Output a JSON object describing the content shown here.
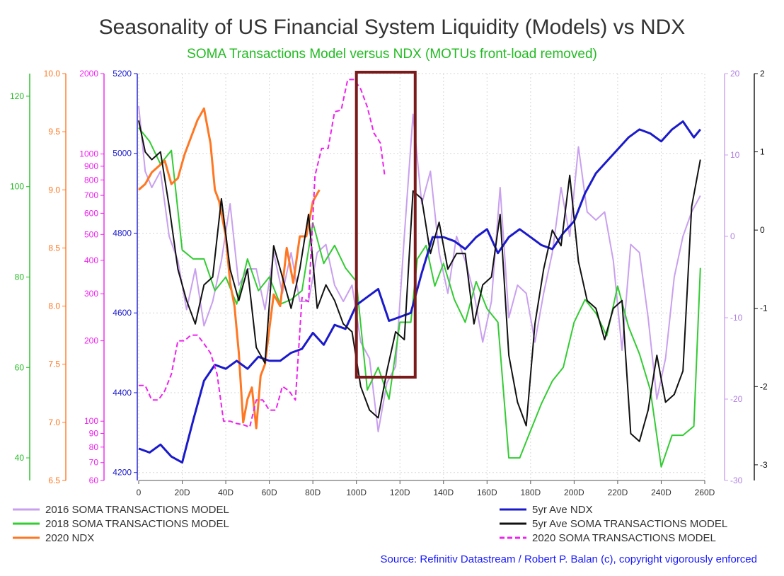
{
  "chart_data": {
    "type": "line",
    "title": "Seasonality of US Financial System Liquidity (Models) vs NDX",
    "subtitle": "SOMA Transactions Model versus NDX (MOTUs front-load removed)",
    "x_ticks": [
      "0",
      "20D",
      "40D",
      "60D",
      "80D",
      "100D",
      "120D",
      "140D",
      "160D",
      "180D",
      "200D",
      "220D",
      "240D",
      "260D"
    ],
    "xlim": [
      0,
      260
    ],
    "grid": true,
    "axes": {
      "left_green": {
        "ticks": [
          "120",
          "100",
          "80",
          "60",
          "40"
        ],
        "ylim": [
          35,
          125
        ]
      },
      "left_orange": {
        "ticks": [
          "10.0",
          "9.5",
          "9.0",
          "8.5",
          "8.0",
          "7.5",
          "7.0",
          "6.5"
        ],
        "ylim": [
          6.5,
          10.0
        ]
      },
      "left_magenta": {
        "ticks": [
          "2000",
          "1000",
          "900",
          "800",
          "700",
          "600",
          "500",
          "400",
          "300",
          "200",
          "100",
          "90",
          "80",
          "70",
          "60"
        ],
        "ylim": [
          60,
          2000
        ],
        "scale": "log"
      },
      "left_blue": {
        "ticks": [
          "5200",
          "5000",
          "4800",
          "4600",
          "4400",
          "4200"
        ],
        "ylim": [
          4180,
          5200
        ]
      },
      "right_lilac": {
        "ticks": [
          "20",
          "10",
          "0",
          "-10",
          "-20",
          "-30"
        ],
        "ylim": [
          -30,
          20
        ]
      },
      "right_black": {
        "ticks": [
          "2",
          "1",
          "0",
          "-1",
          "-2",
          "-3"
        ],
        "ylim": [
          -3.2,
          2
        ]
      }
    },
    "series": [
      {
        "name": "2016 SOMA TRANSACTIONS MODEL",
        "color": "#c9a0ee",
        "axis": "right_lilac",
        "x": [
          0,
          3,
          6,
          10,
          14,
          18,
          22,
          26,
          30,
          34,
          38,
          42,
          46,
          50,
          54,
          58,
          62,
          66,
          70,
          74,
          78,
          82,
          86,
          90,
          94,
          98,
          102,
          106,
          110,
          114,
          118,
          122,
          126,
          130,
          134,
          138,
          142,
          146,
          150,
          154,
          158,
          162,
          166,
          170,
          174,
          178,
          182,
          186,
          190,
          194,
          198,
          202,
          206,
          210,
          214,
          218,
          222,
          226,
          230,
          234,
          238,
          242,
          246,
          250,
          254,
          258
        ],
        "y": [
          16,
          8,
          6,
          8,
          0,
          -3,
          -9,
          -4,
          -11,
          -8,
          -3,
          4,
          -6,
          -4,
          -4,
          -9,
          -2,
          -7,
          -2,
          -8,
          -8,
          -2,
          -1,
          -6,
          -8,
          -6,
          -13,
          -15,
          -24,
          -18,
          -16,
          0,
          15,
          4,
          8,
          -2,
          -7,
          0,
          -3,
          -7,
          -13,
          -8,
          6,
          -10,
          -6,
          -7,
          -13,
          -7,
          -2,
          6,
          0,
          11,
          3,
          2,
          3,
          -3,
          -14,
          -1,
          -2,
          -10,
          -20,
          -15,
          -5,
          0,
          3,
          5
        ]
      },
      {
        "name": "2018 SOMA TRANSACTIONS MODEL",
        "color": "#33cc33",
        "axis": "left_green",
        "x": [
          0,
          5,
          10,
          15,
          20,
          25,
          30,
          35,
          40,
          45,
          50,
          55,
          60,
          65,
          70,
          75,
          80,
          85,
          90,
          95,
          100,
          105,
          110,
          115,
          120,
          125,
          128,
          132,
          136,
          140,
          145,
          150,
          155,
          160,
          165,
          170,
          175,
          180,
          185,
          190,
          195,
          200,
          205,
          210,
          215,
          220,
          225,
          230,
          235,
          240,
          245,
          250,
          255,
          258
        ],
        "y": [
          113,
          110,
          105,
          108,
          86,
          84,
          84,
          77,
          80,
          74,
          84,
          77,
          80,
          74,
          75,
          77,
          92,
          83,
          87,
          82,
          79,
          55,
          60,
          53,
          70,
          70,
          84,
          87,
          78,
          83,
          75,
          70,
          79,
          73,
          70,
          40,
          40,
          46,
          52,
          57,
          60,
          70,
          75,
          72,
          67,
          78,
          69,
          63,
          55,
          38,
          45,
          45,
          47,
          82
        ]
      },
      {
        "name": "2020 NDX",
        "color": "#ff7722",
        "axis": "left_orange",
        "x": [
          0,
          3,
          6,
          9,
          12,
          15,
          18,
          21,
          24,
          27,
          30,
          33,
          35,
          37,
          40,
          42,
          44,
          46,
          48,
          50,
          52,
          54,
          56,
          58,
          60,
          62,
          65,
          68,
          71,
          74,
          77,
          80,
          83
        ],
        "y": [
          9.0,
          9.05,
          9.15,
          9.2,
          9.25,
          9.05,
          9.1,
          9.3,
          9.45,
          9.6,
          9.7,
          9.4,
          9.0,
          8.9,
          8.6,
          8.2,
          8.0,
          7.6,
          7.0,
          7.2,
          7.3,
          6.95,
          7.4,
          7.5,
          7.8,
          8.1,
          8.0,
          8.5,
          8.2,
          8.6,
          8.6,
          8.9,
          9.0
        ]
      },
      {
        "name": "5yr Ave NDX",
        "color": "#1a1acc",
        "axis": "left_blue",
        "x": [
          0,
          5,
          10,
          15,
          20,
          25,
          30,
          35,
          40,
          45,
          50,
          55,
          60,
          65,
          70,
          75,
          80,
          85,
          90,
          95,
          100,
          105,
          110,
          115,
          120,
          125,
          130,
          135,
          140,
          145,
          150,
          155,
          160,
          165,
          170,
          175,
          180,
          185,
          190,
          195,
          200,
          205,
          210,
          215,
          220,
          225,
          230,
          235,
          240,
          245,
          250,
          255,
          258
        ],
        "y": [
          4260,
          4250,
          4270,
          4240,
          4225,
          4330,
          4430,
          4470,
          4460,
          4480,
          4460,
          4490,
          4480,
          4480,
          4500,
          4510,
          4550,
          4520,
          4570,
          4560,
          4620,
          4640,
          4660,
          4580,
          4590,
          4600,
          4700,
          4790,
          4790,
          4780,
          4760,
          4790,
          4810,
          4750,
          4790,
          4810,
          4790,
          4770,
          4760,
          4800,
          4830,
          4900,
          4950,
          4980,
          5010,
          5040,
          5060,
          5050,
          5030,
          5060,
          5080,
          5040,
          5060
        ]
      },
      {
        "name": "5yr Ave SOMA TRANSACTIONS MODEL",
        "color": "#111111",
        "axis": "right_black",
        "x": [
          0,
          3,
          6,
          10,
          14,
          18,
          22,
          26,
          30,
          34,
          38,
          42,
          46,
          50,
          54,
          58,
          62,
          66,
          70,
          74,
          78,
          82,
          86,
          90,
          94,
          98,
          102,
          106,
          110,
          114,
          118,
          122,
          126,
          130,
          134,
          138,
          142,
          146,
          150,
          154,
          158,
          162,
          166,
          170,
          174,
          178,
          182,
          186,
          190,
          194,
          198,
          202,
          206,
          210,
          214,
          218,
          222,
          226,
          230,
          234,
          238,
          242,
          246,
          250,
          254,
          258
        ],
        "y": [
          1.4,
          1.0,
          0.9,
          1.0,
          0.3,
          -0.5,
          -0.9,
          -1.2,
          -0.7,
          -0.6,
          0.4,
          -0.5,
          -0.9,
          -0.5,
          -1.5,
          -1.7,
          -0.2,
          -0.6,
          -1.0,
          -0.5,
          0.2,
          -1.0,
          -0.7,
          -0.9,
          -1.2,
          -1.3,
          -2.0,
          -2.3,
          -2.4,
          -1.8,
          -1.3,
          -1.4,
          0.5,
          0.4,
          -0.3,
          0.1,
          -0.5,
          -0.3,
          -0.3,
          -1.2,
          -0.7,
          -0.6,
          0.2,
          -1.6,
          -2.2,
          -2.5,
          -1.2,
          -0.5,
          0.0,
          -0.2,
          0.7,
          -0.4,
          -0.9,
          -1.0,
          -1.4,
          -1.0,
          -0.9,
          -2.6,
          -2.7,
          -2.3,
          -1.6,
          -2.2,
          -2.1,
          -1.8,
          0.3,
          0.9
        ]
      },
      {
        "name": "2020 SOMA TRANSACTIONS MODEL",
        "color": "#ee22ee",
        "axis": "left_magenta",
        "dash": true,
        "x": [
          0,
          3,
          6,
          9,
          12,
          15,
          18,
          21,
          24,
          27,
          30,
          33,
          36,
          39,
          42,
          45,
          48,
          51,
          54,
          57,
          60,
          63,
          66,
          69,
          72,
          75,
          78,
          81,
          84,
          87,
          90,
          93,
          96,
          99,
          102,
          105,
          108,
          111,
          113
        ],
        "y": [
          136,
          136,
          120,
          120,
          130,
          150,
          200,
          200,
          210,
          210,
          195,
          180,
          150,
          100,
          100,
          98,
          97,
          95,
          120,
          120,
          110,
          110,
          135,
          130,
          120,
          290,
          280,
          830,
          1050,
          1050,
          1440,
          1460,
          1900,
          1900,
          1750,
          1500,
          1200,
          1100,
          830
        ]
      }
    ],
    "legend": {
      "position": "bottom",
      "columns": 2
    }
  },
  "annotation": {
    "type": "highlight-box",
    "color": "#7a1a1a",
    "x_range": [
      100,
      127
    ]
  },
  "source": "Source: Refinitiv Datastream  / Robert P. Balan (c), copyright vigorously enforced"
}
